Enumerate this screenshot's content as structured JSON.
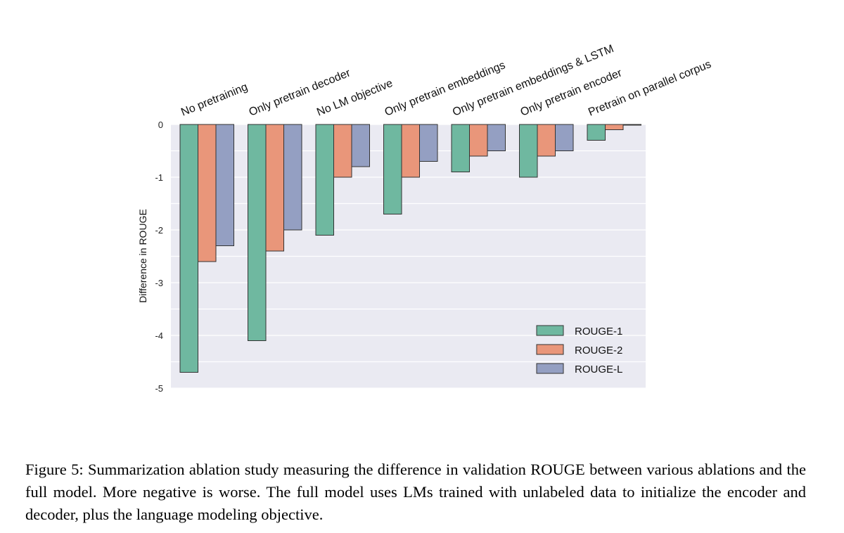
{
  "chart_data": {
    "type": "bar",
    "categories": [
      "No pretraining",
      "Only pretrain decoder",
      "No LM objective",
      "Only pretrain embeddings",
      "Only pretrain embeddings & LSTM",
      "Only pretrain encoder",
      "Pretrain on parallel corpus"
    ],
    "series": [
      {
        "name": "ROUGE-1",
        "color": "#6fb8a0",
        "values": [
          -4.7,
          -4.1,
          -2.1,
          -1.7,
          -0.9,
          -1.0,
          -0.3
        ]
      },
      {
        "name": "ROUGE-2",
        "color": "#e9967a",
        "values": [
          -2.6,
          -2.4,
          -1.0,
          -1.0,
          -0.6,
          -0.6,
          -0.1
        ]
      },
      {
        "name": "ROUGE-L",
        "color": "#949fc2",
        "values": [
          -2.3,
          -2.0,
          -0.8,
          -0.7,
          -0.5,
          -0.5,
          0.0
        ]
      }
    ],
    "ylabel": "Difference in ROUGE",
    "xlabel": "",
    "ylim": [
      -5,
      0
    ],
    "yticks": [
      0,
      -1,
      -2,
      -3,
      -4,
      -5
    ],
    "ytick_labels": [
      "0",
      "-1",
      "-2",
      "-3",
      "-4",
      "-5"
    ],
    "grid": true,
    "legend_position": "lower-right",
    "plot_background": "#eaeaf2"
  },
  "caption": "Figure 5: Summarization ablation study measuring the difference in validation ROUGE between various ablations and the full model. More negative is worse. The full model uses LMs trained with unlabeled data to initialize the encoder and decoder, plus the language modeling objective."
}
